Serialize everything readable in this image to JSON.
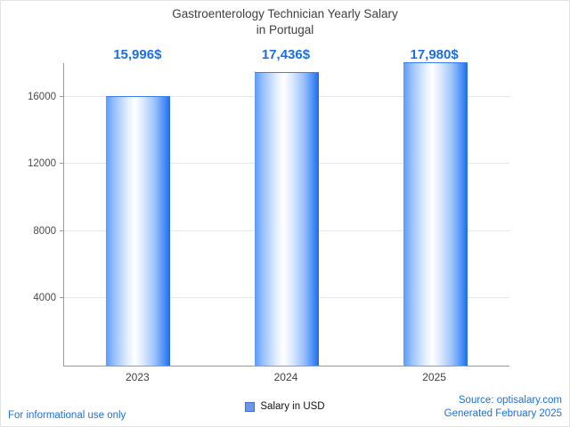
{
  "title": {
    "line1": "Gastroenterology Technician Yearly Salary",
    "line2": "in Portugal"
  },
  "chart_data": {
    "type": "bar",
    "title": "Gastroenterology Technician Yearly Salary in Portugal",
    "categories": [
      "2023",
      "2024",
      "2025"
    ],
    "values": [
      15996,
      17436,
      17980
    ],
    "value_labels": [
      "15,996$",
      "17,436$",
      "17,980$"
    ],
    "series_name": "Salary in USD",
    "xlabel": "",
    "ylabel": "",
    "ylim": [
      0,
      18000
    ],
    "yticks": [
      4000,
      8000,
      12000,
      16000
    ],
    "grid": true,
    "legend_position": "bottom"
  },
  "legend": {
    "label": "Salary in USD"
  },
  "footer": {
    "left": "For informational use only",
    "source": "Source: optisalary.com",
    "generated": "Generated February 2025"
  },
  "colors": {
    "accent": "#1a6fe8",
    "title_text": "#3f3f3f",
    "axis": "#9a9a9a",
    "grid": "#e7e7e7",
    "bar_edge_blue": "#1e6ae8",
    "bar_center": "#ffffff",
    "legend_swatch": "#6a97e8"
  }
}
